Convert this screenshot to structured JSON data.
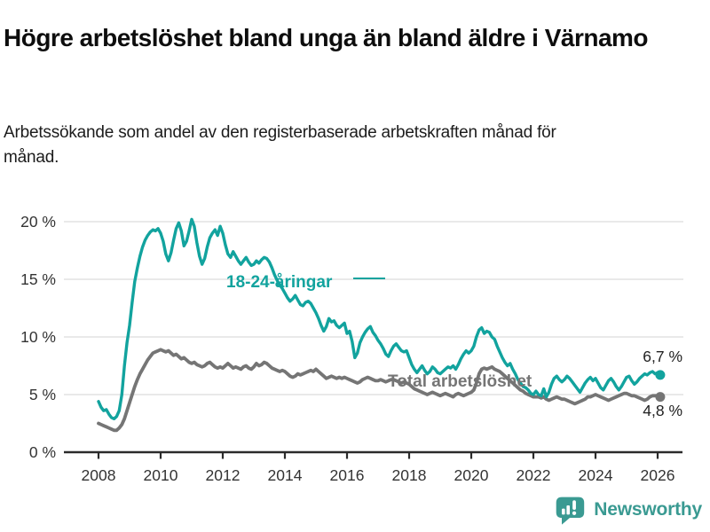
{
  "header": {
    "title": "Högre arbetslöshet bland unga än bland äldre i Värnamo",
    "subtitle": "Arbetssökande som andel av den registerbaserade arbetskraften månad för månad."
  },
  "chart_data": {
    "type": "line",
    "title": "Högre arbetslöshet bland unga än bland äldre i Värnamo",
    "subtitle": "Arbetssökande som andel av den registerbaserade arbetskraften månad för månad.",
    "unit": "%",
    "frequency": "monthly",
    "x_start_year": 2008,
    "x_end": "2026-02",
    "xlim": [
      2007.9,
      2026.8
    ],
    "ylim": [
      0,
      21
    ],
    "grid": "horizontal",
    "legend_position": "inline-labels",
    "x_ticks": [
      2008,
      2010,
      2012,
      2014,
      2016,
      2018,
      2020,
      2022,
      2024,
      2026
    ],
    "y_ticks": [
      {
        "value": 0,
        "label": "0 %"
      },
      {
        "value": 5,
        "label": "5 %"
      },
      {
        "value": 10,
        "label": "10 %"
      },
      {
        "value": 15,
        "label": "15 %"
      },
      {
        "value": 20,
        "label": "20 %"
      }
    ],
    "series": [
      {
        "name": "18-24-åringar",
        "color": "#12A39E",
        "end_label": "6,7 %",
        "last_value": 6.7,
        "values": [
          4.4,
          3.9,
          3.6,
          3.7,
          3.3,
          3.0,
          2.9,
          3.1,
          3.6,
          5.0,
          7.5,
          9.5,
          11.0,
          13.0,
          14.8,
          16.0,
          17.0,
          17.8,
          18.4,
          18.8,
          19.1,
          19.3,
          19.2,
          19.4,
          19.0,
          18.3,
          17.2,
          16.6,
          17.3,
          18.4,
          19.4,
          19.9,
          19.2,
          17.9,
          18.3,
          19.2,
          20.2,
          19.6,
          18.2,
          17.0,
          16.3,
          16.8,
          17.8,
          18.6,
          19.0,
          19.3,
          18.8,
          19.6,
          19.0,
          18.0,
          17.2,
          16.9,
          17.4,
          17.0,
          16.6,
          16.3,
          16.6,
          16.9,
          16.5,
          16.2,
          16.3,
          16.6,
          16.4,
          16.7,
          16.9,
          16.8,
          16.5,
          16.0,
          15.4,
          14.9,
          14.5,
          14.2,
          13.8,
          13.4,
          13.1,
          13.3,
          13.6,
          13.2,
          12.8,
          12.7,
          13.0,
          13.1,
          12.9,
          12.5,
          12.1,
          11.6,
          11.0,
          10.5,
          10.9,
          11.6,
          11.3,
          11.4,
          11.0,
          10.8,
          11.0,
          11.2,
          10.3,
          10.5,
          9.6,
          8.2,
          8.6,
          9.5,
          10.0,
          10.4,
          10.7,
          10.9,
          10.4,
          10.1,
          9.7,
          9.4,
          9.0,
          8.5,
          8.3,
          8.8,
          9.2,
          9.4,
          9.1,
          8.8,
          8.7,
          8.8,
          8.2,
          7.6,
          7.2,
          6.9,
          7.2,
          7.5,
          7.1,
          6.8,
          7.0,
          7.4,
          7.2,
          6.9,
          6.8,
          7.0,
          7.2,
          7.4,
          7.3,
          7.5,
          7.2,
          7.6,
          8.1,
          8.5,
          8.8,
          8.6,
          8.8,
          9.2,
          10.0,
          10.6,
          10.8,
          10.3,
          10.5,
          10.4,
          10.0,
          9.8,
          9.2,
          8.7,
          8.2,
          7.8,
          7.5,
          7.7,
          7.2,
          6.8,
          6.3,
          6.0,
          5.7,
          5.6,
          5.4,
          5.1,
          5.0,
          5.3,
          5.0,
          4.9,
          5.5,
          4.8,
          5.2,
          5.9,
          6.4,
          6.6,
          6.3,
          6.1,
          6.3,
          6.6,
          6.4,
          6.1,
          5.8,
          5.5,
          5.2,
          5.6,
          6.0,
          6.3,
          6.5,
          6.2,
          6.4,
          6.0,
          5.6,
          5.4,
          5.8,
          6.2,
          6.4,
          6.1,
          5.7,
          5.4,
          5.7,
          6.1,
          6.5,
          6.6,
          6.2,
          5.9,
          6.1,
          6.4,
          6.6,
          6.8,
          6.7,
          6.9,
          7.0,
          6.8,
          6.9,
          6.7
        ]
      },
      {
        "name": "Total arbetslöshet",
        "color": "#757575",
        "end_label": "4,8 %",
        "last_value": 4.8,
        "values": [
          2.5,
          2.4,
          2.3,
          2.2,
          2.1,
          2.0,
          1.9,
          1.9,
          2.1,
          2.4,
          2.9,
          3.6,
          4.3,
          5.0,
          5.7,
          6.3,
          6.8,
          7.2,
          7.6,
          8.0,
          8.3,
          8.6,
          8.7,
          8.8,
          8.9,
          8.8,
          8.7,
          8.8,
          8.6,
          8.4,
          8.5,
          8.3,
          8.1,
          8.2,
          8.0,
          7.8,
          7.7,
          7.8,
          7.6,
          7.5,
          7.4,
          7.5,
          7.7,
          7.8,
          7.6,
          7.4,
          7.3,
          7.4,
          7.3,
          7.5,
          7.7,
          7.5,
          7.3,
          7.4,
          7.3,
          7.2,
          7.4,
          7.5,
          7.3,
          7.2,
          7.4,
          7.7,
          7.5,
          7.6,
          7.8,
          7.7,
          7.5,
          7.3,
          7.2,
          7.1,
          7.0,
          7.1,
          7.0,
          6.8,
          6.6,
          6.5,
          6.6,
          6.8,
          6.7,
          6.8,
          6.9,
          7.0,
          7.1,
          7.0,
          7.2,
          7.0,
          6.8,
          6.6,
          6.4,
          6.5,
          6.6,
          6.5,
          6.4,
          6.5,
          6.4,
          6.5,
          6.4,
          6.3,
          6.2,
          6.1,
          6.0,
          6.1,
          6.3,
          6.4,
          6.5,
          6.4,
          6.3,
          6.2,
          6.2,
          6.3,
          6.2,
          6.1,
          6.2,
          6.3,
          6.3,
          6.2,
          6.1,
          6.0,
          6.1,
          6.0,
          5.9,
          5.7,
          5.5,
          5.4,
          5.3,
          5.2,
          5.1,
          5.0,
          5.1,
          5.2,
          5.1,
          5.0,
          4.9,
          5.0,
          5.1,
          5.0,
          4.9,
          4.8,
          5.0,
          5.1,
          5.0,
          4.9,
          5.0,
          5.1,
          5.2,
          5.4,
          6.0,
          6.8,
          7.2,
          7.3,
          7.2,
          7.3,
          7.4,
          7.2,
          7.1,
          7.0,
          6.8,
          6.6,
          6.4,
          6.2,
          6.0,
          5.8,
          5.6,
          5.4,
          5.3,
          5.1,
          5.0,
          4.9,
          4.8,
          4.8,
          4.8,
          4.7,
          4.8,
          4.6,
          4.5,
          4.6,
          4.7,
          4.8,
          4.7,
          4.6,
          4.6,
          4.5,
          4.4,
          4.3,
          4.2,
          4.3,
          4.4,
          4.5,
          4.6,
          4.8,
          4.8,
          4.9,
          5.0,
          4.9,
          4.8,
          4.7,
          4.6,
          4.5,
          4.6,
          4.7,
          4.8,
          4.9,
          5.0,
          5.1,
          5.1,
          5.0,
          4.9,
          4.9,
          4.8,
          4.7,
          4.6,
          4.5,
          4.6,
          4.8,
          4.9,
          4.9,
          4.9,
          4.8
        ]
      }
    ]
  },
  "footer": {
    "brand": "Newsworthy"
  },
  "colors": {
    "accent_teal": "#12A39E",
    "line_gray": "#757575",
    "axis": "#2b2b2b",
    "gridline": "#dcdcdc",
    "tick_text": "#333333",
    "value_text": "#222222",
    "logo_teal": "#3a9a92"
  }
}
